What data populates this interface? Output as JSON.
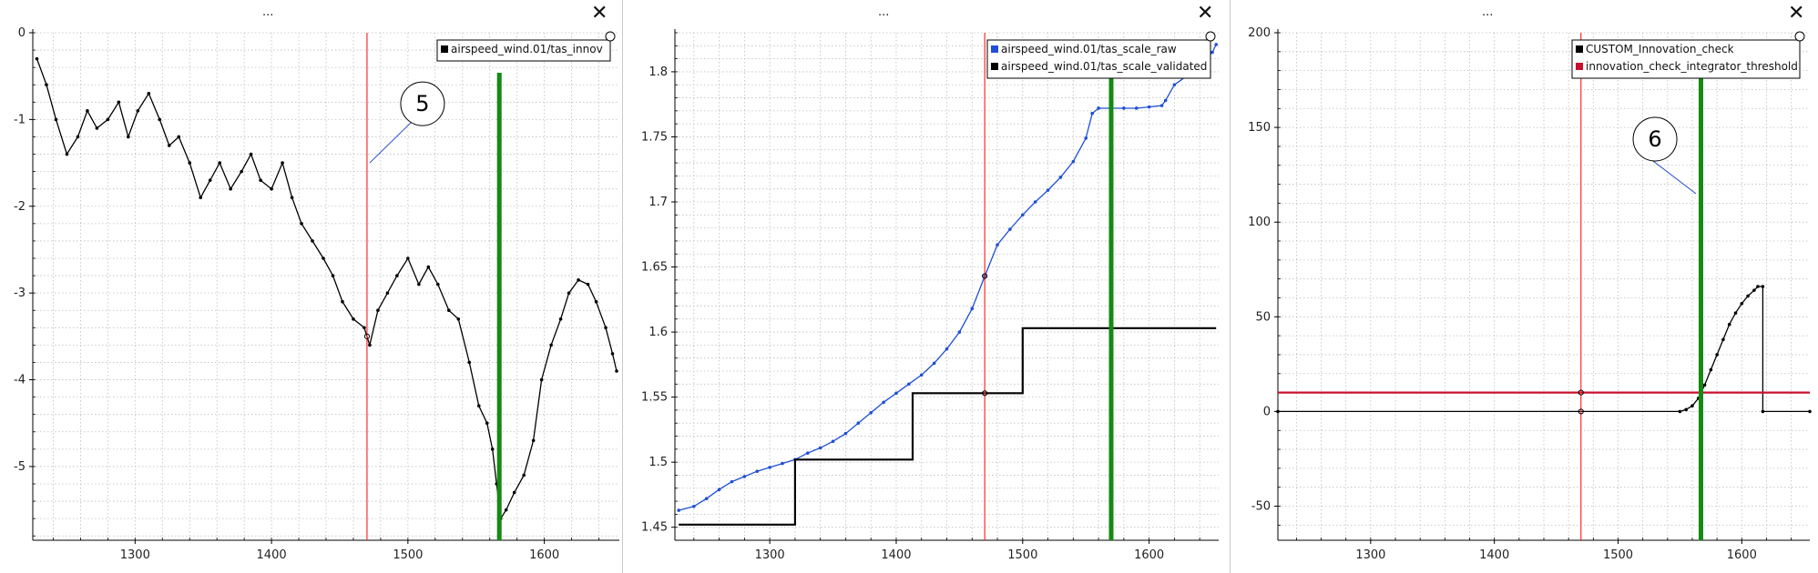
{
  "panels": [
    {
      "title": "...",
      "close_label": "✕",
      "close_icon": "close-icon"
    },
    {
      "title": "...",
      "close_label": "✕",
      "close_icon": "close-icon"
    },
    {
      "title": "...",
      "close_label": "✕",
      "close_icon": "close-icon"
    }
  ],
  "colors": {
    "black_series": "#000000",
    "blue_series": "#1f4fd6",
    "red_series": "#c8102e",
    "tracker_line": "#ff2a2a",
    "green_marker": "#138a13",
    "annotation_line": "#2244cc",
    "grid": "#bdbdbd"
  },
  "chart_data": [
    {
      "type": "line",
      "title": "",
      "xlabel": "",
      "ylabel": "",
      "xlim": [
        1225,
        1655
      ],
      "ylim": [
        -5.85,
        0
      ],
      "x_ticks": [
        "1300",
        "1400",
        "1500",
        "1600"
      ],
      "y_ticks": [
        "0",
        "-1",
        "-2",
        "-3",
        "-4",
        "-5"
      ],
      "grid": true,
      "legend_position": "top-right",
      "series": [
        {
          "name": "airspeed_wind.01/tas_innov",
          "color": "#000000",
          "markers": true,
          "x": [
            1228,
            1235,
            1242,
            1250,
            1258,
            1265,
            1272,
            1280,
            1288,
            1295,
            1302,
            1310,
            1318,
            1325,
            1332,
            1340,
            1348,
            1355,
            1362,
            1370,
            1378,
            1385,
            1392,
            1400,
            1408,
            1415,
            1422,
            1430,
            1438,
            1445,
            1452,
            1460,
            1468,
            1472,
            1478,
            1485,
            1492,
            1500,
            1508,
            1515,
            1522,
            1530,
            1537,
            1545,
            1552,
            1558,
            1562,
            1565,
            1568,
            1572,
            1578,
            1585,
            1592,
            1598,
            1605,
            1612,
            1618,
            1625,
            1632,
            1638,
            1645,
            1650,
            1653
          ],
          "y": [
            -0.3,
            -0.6,
            -1.0,
            -1.4,
            -1.2,
            -0.9,
            -1.1,
            -1.0,
            -0.8,
            -1.2,
            -0.9,
            -0.7,
            -1.0,
            -1.3,
            -1.2,
            -1.5,
            -1.9,
            -1.7,
            -1.5,
            -1.8,
            -1.6,
            -1.4,
            -1.7,
            -1.8,
            -1.5,
            -1.9,
            -2.2,
            -2.4,
            -2.6,
            -2.8,
            -3.1,
            -3.3,
            -3.4,
            -3.6,
            -3.2,
            -3.0,
            -2.8,
            -2.6,
            -2.9,
            -2.7,
            -2.9,
            -3.2,
            -3.3,
            -3.8,
            -4.3,
            -4.5,
            -4.8,
            -5.2,
            -5.6,
            -5.5,
            -5.3,
            -5.1,
            -4.7,
            -4.0,
            -3.6,
            -3.3,
            -3.0,
            -2.85,
            -2.9,
            -3.1,
            -3.4,
            -3.7,
            -3.9
          ]
        }
      ],
      "tracker_x": 1470,
      "green_marker_x": 1567,
      "annotation": {
        "label": "5",
        "target": [
          1472,
          -1.5
        ]
      }
    },
    {
      "type": "line",
      "title": "",
      "xlabel": "",
      "ylabel": "",
      "xlim": [
        1225,
        1655
      ],
      "ylim": [
        1.44,
        1.83
      ],
      "x_ticks": [
        "1300",
        "1400",
        "1500",
        "1600"
      ],
      "y_ticks": [
        "1.45",
        "1.5",
        "1.55",
        "1.6",
        "1.65",
        "1.7",
        "1.75",
        "1.8"
      ],
      "grid": true,
      "legend_position": "top-right",
      "series": [
        {
          "name": "airspeed_wind.01/tas_scale_raw",
          "color": "#1f4fd6",
          "markers": true,
          "x": [
            1228,
            1240,
            1250,
            1260,
            1270,
            1280,
            1290,
            1300,
            1310,
            1320,
            1330,
            1340,
            1350,
            1360,
            1370,
            1380,
            1390,
            1400,
            1410,
            1420,
            1430,
            1440,
            1450,
            1460,
            1470,
            1480,
            1490,
            1500,
            1510,
            1520,
            1530,
            1540,
            1550,
            1555,
            1560,
            1570,
            1580,
            1590,
            1600,
            1610,
            1613,
            1620,
            1630,
            1640,
            1650,
            1653
          ],
          "y": [
            1.463,
            1.466,
            1.472,
            1.479,
            1.485,
            1.489,
            1.493,
            1.496,
            1.499,
            1.502,
            1.507,
            1.511,
            1.516,
            1.522,
            1.53,
            1.538,
            1.546,
            1.553,
            1.56,
            1.567,
            1.576,
            1.587,
            1.6,
            1.618,
            1.643,
            1.667,
            1.679,
            1.69,
            1.7,
            1.709,
            1.719,
            1.731,
            1.749,
            1.768,
            1.772,
            1.772,
            1.772,
            1.772,
            1.773,
            1.774,
            1.778,
            1.79,
            1.797,
            1.805,
            1.815,
            1.821
          ]
        },
        {
          "name": "airspeed_wind.01/tas_scale_validated",
          "color": "#000000",
          "markers": false,
          "x": [
            1228,
            1320,
            1320,
            1413,
            1413,
            1500,
            1500,
            1653
          ],
          "y": [
            1.452,
            1.452,
            1.502,
            1.502,
            1.553,
            1.553,
            1.603,
            1.603
          ]
        }
      ],
      "tracker_x": 1470,
      "green_marker_x": 1570
    },
    {
      "type": "line",
      "title": "",
      "xlabel": "",
      "ylabel": "",
      "xlim": [
        1225,
        1655
      ],
      "ylim": [
        -68,
        200
      ],
      "x_ticks": [
        "1300",
        "1400",
        "1500",
        "1600"
      ],
      "y_ticks": [
        "200",
        "150",
        "100",
        "50",
        "0",
        "-50"
      ],
      "grid": true,
      "legend_position": "top-right",
      "series": [
        {
          "name": "CUSTOM_Innovation_check",
          "color": "#000000",
          "markers": true,
          "x": [
            1225,
            1550,
            1555,
            1560,
            1565,
            1570,
            1575,
            1580,
            1585,
            1590,
            1595,
            1600,
            1605,
            1610,
            1613,
            1617,
            1617,
            1655
          ],
          "y": [
            0,
            0,
            1,
            3,
            7,
            14,
            22,
            30,
            38,
            46,
            52,
            57,
            61,
            64,
            66,
            66,
            0,
            0
          ]
        },
        {
          "name": "innovation_check_integrator_threshold",
          "color": "#c8102e",
          "markers": false,
          "x": [
            1225,
            1655
          ],
          "y": [
            10,
            10
          ]
        }
      ],
      "tracker_x": 1470,
      "green_marker_x": 1567,
      "annotation": {
        "label": "6",
        "target": [
          1563,
          115
        ]
      }
    }
  ]
}
